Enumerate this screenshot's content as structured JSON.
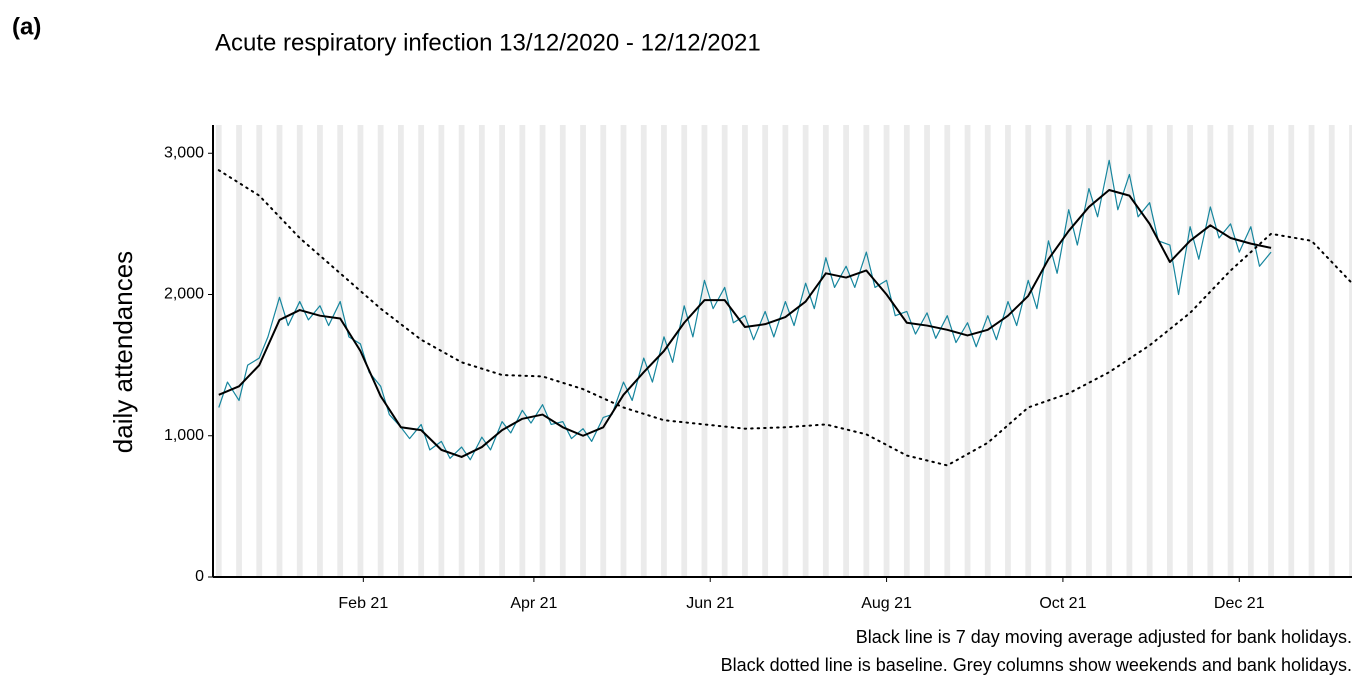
{
  "chart_data": {
    "type": "line",
    "panel_label": "(a)",
    "title": "Acute respiratory infection 13/12/2020 - 12/12/2021",
    "y_label": "daily attendances",
    "caption": [
      "Black line is 7 day moving average adjusted for bank holidays.",
      "Black dotted line is baseline. Grey columns show weekends and bank holidays."
    ],
    "xlim": [
      "2020-12-11",
      "2022-01-09"
    ],
    "xticks": [
      {
        "value": "2021-02-01",
        "label": "Feb 21"
      },
      {
        "value": "2021-04-01",
        "label": "Apr 21"
      },
      {
        "value": "2021-06-01",
        "label": "Jun 21"
      },
      {
        "value": "2021-08-01",
        "label": "Aug 21"
      },
      {
        "value": "2021-10-01",
        "label": "Oct 21"
      },
      {
        "value": "2021-12-01",
        "label": "Dec 21"
      }
    ],
    "ylim": [
      0,
      3200
    ],
    "yticks": [
      0,
      {
        "value": 1000,
        "label": "1,000"
      },
      {
        "value": 2000,
        "label": "2,000"
      },
      {
        "value": 3000,
        "label": "3,000"
      }
    ],
    "weekend_color": "#ebebeb",
    "series": [
      {
        "color": "#17869e",
        "linestyle": "solid",
        "width": 1.2,
        "x": [
          "2020-12-13",
          "2020-12-16",
          "2020-12-20",
          "2020-12-23",
          "2020-12-27",
          "2020-12-30",
          "2021-01-03",
          "2021-01-06",
          "2021-01-10",
          "2021-01-13",
          "2021-01-17",
          "2021-01-20",
          "2021-01-24",
          "2021-01-27",
          "2021-01-31",
          "2021-02-03",
          "2021-02-07",
          "2021-02-10",
          "2021-02-14",
          "2021-02-17",
          "2021-02-21",
          "2021-02-24",
          "2021-02-28",
          "2021-03-03",
          "2021-03-07",
          "2021-03-10",
          "2021-03-14",
          "2021-03-17",
          "2021-03-21",
          "2021-03-24",
          "2021-03-28",
          "2021-03-31",
          "2021-04-04",
          "2021-04-07",
          "2021-04-11",
          "2021-04-14",
          "2021-04-18",
          "2021-04-21",
          "2021-04-25",
          "2021-04-28",
          "2021-05-02",
          "2021-05-05",
          "2021-05-09",
          "2021-05-12",
          "2021-05-16",
          "2021-05-19",
          "2021-05-23",
          "2021-05-26",
          "2021-05-30",
          "2021-06-02",
          "2021-06-06",
          "2021-06-09",
          "2021-06-13",
          "2021-06-16",
          "2021-06-20",
          "2021-06-23",
          "2021-06-27",
          "2021-06-30",
          "2021-07-04",
          "2021-07-07",
          "2021-07-11",
          "2021-07-14",
          "2021-07-18",
          "2021-07-21",
          "2021-07-25",
          "2021-07-28",
          "2021-08-01",
          "2021-08-04",
          "2021-08-08",
          "2021-08-11",
          "2021-08-15",
          "2021-08-18",
          "2021-08-22",
          "2021-08-25",
          "2021-08-29",
          "2021-09-01",
          "2021-09-05",
          "2021-09-08",
          "2021-09-12",
          "2021-09-15",
          "2021-09-19",
          "2021-09-22",
          "2021-09-26",
          "2021-09-29",
          "2021-10-03",
          "2021-10-06",
          "2021-10-10",
          "2021-10-13",
          "2021-10-17",
          "2021-10-20",
          "2021-10-24",
          "2021-10-27",
          "2021-10-31",
          "2021-11-03",
          "2021-11-07",
          "2021-11-10",
          "2021-11-14",
          "2021-11-17",
          "2021-11-21",
          "2021-11-24",
          "2021-11-28",
          "2021-12-01",
          "2021-12-05",
          "2021-12-08",
          "2021-12-12"
        ],
        "values": [
          1200,
          1380,
          1250,
          1500,
          1550,
          1700,
          1980,
          1780,
          1950,
          1820,
          1920,
          1780,
          1950,
          1700,
          1650,
          1450,
          1350,
          1150,
          1060,
          980,
          1080,
          900,
          960,
          840,
          920,
          830,
          990,
          900,
          1100,
          1020,
          1180,
          1090,
          1220,
          1080,
          1100,
          980,
          1050,
          960,
          1130,
          1150,
          1380,
          1250,
          1550,
          1380,
          1700,
          1520,
          1920,
          1700,
          2100,
          1900,
          2050,
          1800,
          1850,
          1680,
          1880,
          1700,
          1950,
          1780,
          2080,
          1900,
          2260,
          2050,
          2200,
          2050,
          2300,
          2050,
          2100,
          1850,
          1880,
          1720,
          1870,
          1690,
          1850,
          1660,
          1800,
          1630,
          1850,
          1680,
          1950,
          1780,
          2100,
          1900,
          2380,
          2150,
          2600,
          2350,
          2750,
          2550,
          2950,
          2600,
          2850,
          2550,
          2650,
          2380,
          2350,
          2000,
          2480,
          2250,
          2620,
          2400,
          2500,
          2300,
          2480,
          2200,
          2300
        ]
      },
      {
        "color": "#000000",
        "linestyle": "solid",
        "width": 2,
        "x": [
          "2020-12-13",
          "2020-12-20",
          "2020-12-27",
          "2021-01-03",
          "2021-01-10",
          "2021-01-17",
          "2021-01-24",
          "2021-01-31",
          "2021-02-07",
          "2021-02-14",
          "2021-02-21",
          "2021-02-28",
          "2021-03-07",
          "2021-03-14",
          "2021-03-21",
          "2021-03-28",
          "2021-04-04",
          "2021-04-11",
          "2021-04-18",
          "2021-04-25",
          "2021-05-02",
          "2021-05-09",
          "2021-05-16",
          "2021-05-23",
          "2021-05-30",
          "2021-06-06",
          "2021-06-13",
          "2021-06-20",
          "2021-06-27",
          "2021-07-04",
          "2021-07-11",
          "2021-07-18",
          "2021-07-25",
          "2021-08-01",
          "2021-08-08",
          "2021-08-15",
          "2021-08-22",
          "2021-08-29",
          "2021-09-05",
          "2021-09-12",
          "2021-09-19",
          "2021-09-26",
          "2021-10-03",
          "2021-10-10",
          "2021-10-17",
          "2021-10-24",
          "2021-10-31",
          "2021-11-07",
          "2021-11-14",
          "2021-11-21",
          "2021-11-28",
          "2021-12-05",
          "2021-12-12"
        ],
        "values": [
          1290,
          1350,
          1500,
          1820,
          1890,
          1850,
          1830,
          1600,
          1280,
          1060,
          1040,
          900,
          850,
          920,
          1040,
          1120,
          1150,
          1060,
          1000,
          1060,
          1290,
          1450,
          1600,
          1800,
          1960,
          1960,
          1770,
          1790,
          1840,
          1950,
          2150,
          2120,
          2170,
          2000,
          1800,
          1780,
          1750,
          1710,
          1750,
          1850,
          1990,
          2250,
          2450,
          2620,
          2740,
          2700,
          2500,
          2230,
          2380,
          2490,
          2400,
          2360,
          2330
        ]
      },
      {
        "color": "#000000",
        "linestyle": "dotted",
        "width": 2,
        "x": [
          "2020-12-13",
          "2020-12-27",
          "2021-01-10",
          "2021-01-24",
          "2021-02-07",
          "2021-02-21",
          "2021-03-07",
          "2021-03-21",
          "2021-04-04",
          "2021-04-18",
          "2021-05-02",
          "2021-05-16",
          "2021-05-30",
          "2021-06-13",
          "2021-06-27",
          "2021-07-11",
          "2021-07-25",
          "2021-08-08",
          "2021-08-22",
          "2021-09-05",
          "2021-09-19",
          "2021-10-03",
          "2021-10-17",
          "2021-10-31",
          "2021-11-14",
          "2021-11-28",
          "2021-12-12",
          "2021-12-26",
          "2022-01-09"
        ],
        "values": [
          2880,
          2700,
          2400,
          2150,
          1900,
          1680,
          1520,
          1430,
          1420,
          1330,
          1200,
          1110,
          1080,
          1050,
          1060,
          1080,
          1010,
          860,
          790,
          950,
          1200,
          1300,
          1450,
          1640,
          1870,
          2170,
          2430,
          2380,
          2080
        ]
      }
    ]
  }
}
